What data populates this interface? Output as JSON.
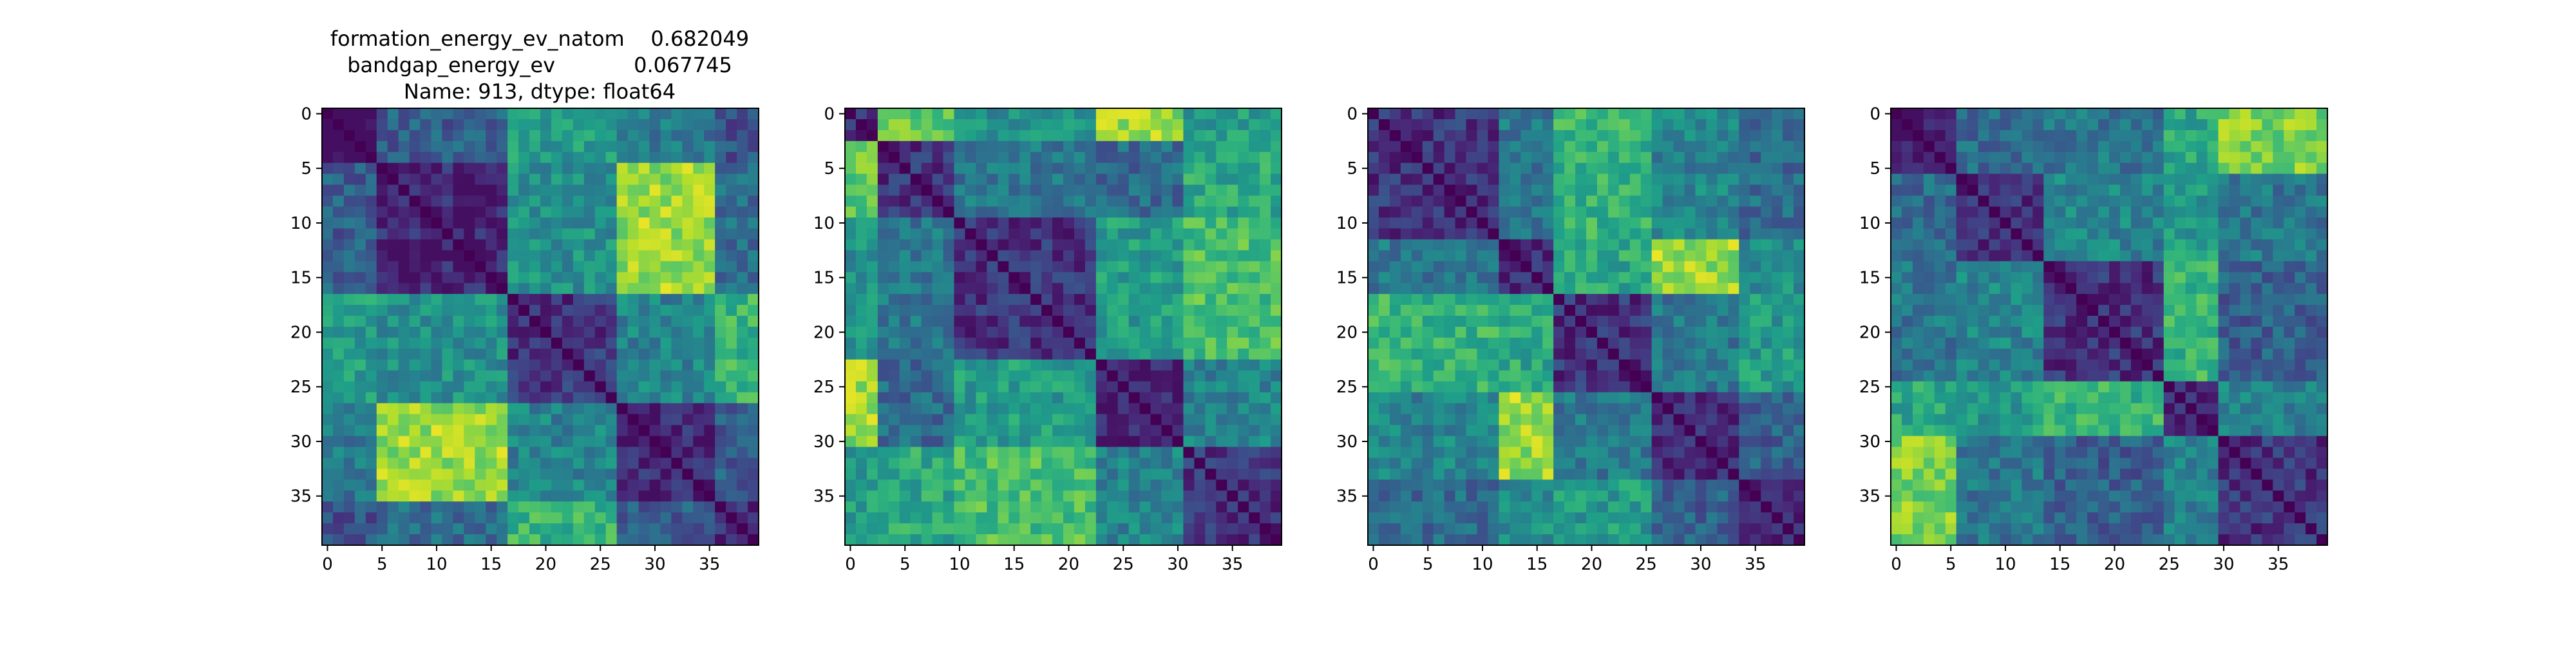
{
  "figure": {
    "background": "#ffffff",
    "title_lines": [
      "formation_energy_ev_natom    0.682049",
      "bandgap_energy_ev            0.067745",
      "Name: 913, dtype: float64"
    ]
  },
  "chart_data": [
    {
      "type": "heatmap",
      "title": "",
      "colormap": "viridis",
      "grid": false,
      "xlim": [
        -0.5,
        39.5
      ],
      "ylim": [
        39.5,
        -0.5
      ],
      "xticks": [
        0,
        5,
        10,
        15,
        20,
        25,
        30,
        35
      ],
      "yticks": [
        0,
        5,
        10,
        15,
        20,
        25,
        30,
        35
      ],
      "matrix_size": 40,
      "diagonal_value": 0.0,
      "groups": [
        [
          0,
          4
        ],
        [
          5,
          16
        ],
        [
          17,
          26
        ],
        [
          27,
          35
        ],
        [
          36,
          39
        ]
      ],
      "block_values": [
        [
          0.0,
          0.3,
          0.55,
          0.4,
          0.25
        ],
        [
          0.3,
          0.1,
          0.5,
          0.85,
          0.35
        ],
        [
          0.55,
          0.5,
          0.15,
          0.45,
          0.65
        ],
        [
          0.4,
          0.85,
          0.45,
          0.1,
          0.3
        ],
        [
          0.25,
          0.35,
          0.65,
          0.3,
          0.1
        ]
      ]
    },
    {
      "type": "heatmap",
      "title": "",
      "colormap": "viridis",
      "grid": false,
      "xlim": [
        -0.5,
        39.5
      ],
      "ylim": [
        39.5,
        -0.5
      ],
      "xticks": [
        0,
        5,
        10,
        15,
        20,
        25,
        30,
        35
      ],
      "yticks": [
        0,
        5,
        10,
        15,
        20,
        25,
        30,
        35
      ],
      "matrix_size": 40,
      "diagonal_value": 0.0,
      "groups": [
        [
          0,
          2
        ],
        [
          3,
          9
        ],
        [
          10,
          22
        ],
        [
          23,
          30
        ],
        [
          31,
          39
        ]
      ],
      "block_values": [
        [
          0.1,
          0.75,
          0.5,
          0.85,
          0.55
        ],
        [
          0.75,
          0.15,
          0.4,
          0.35,
          0.6
        ],
        [
          0.5,
          0.4,
          0.15,
          0.55,
          0.7
        ],
        [
          0.85,
          0.35,
          0.55,
          0.1,
          0.45
        ],
        [
          0.55,
          0.6,
          0.7,
          0.45,
          0.15
        ]
      ]
    },
    {
      "type": "heatmap",
      "title": "",
      "colormap": "viridis",
      "grid": false,
      "xlim": [
        -0.5,
        39.5
      ],
      "ylim": [
        39.5,
        -0.5
      ],
      "xticks": [
        0,
        5,
        10,
        15,
        20,
        25,
        30,
        35
      ],
      "yticks": [
        0,
        5,
        10,
        15,
        20,
        25,
        30,
        35
      ],
      "matrix_size": 40,
      "diagonal_value": 0.0,
      "groups": [
        [
          0,
          11
        ],
        [
          12,
          16
        ],
        [
          17,
          25
        ],
        [
          26,
          33
        ],
        [
          34,
          39
        ]
      ],
      "block_values": [
        [
          0.15,
          0.4,
          0.65,
          0.45,
          0.35
        ],
        [
          0.4,
          0.1,
          0.6,
          0.85,
          0.5
        ],
        [
          0.65,
          0.6,
          0.15,
          0.4,
          0.55
        ],
        [
          0.45,
          0.85,
          0.4,
          0.1,
          0.3
        ],
        [
          0.35,
          0.5,
          0.55,
          0.3,
          0.1
        ]
      ]
    },
    {
      "type": "heatmap",
      "title": "",
      "colormap": "viridis",
      "grid": false,
      "xlim": [
        -0.5,
        39.5
      ],
      "ylim": [
        39.5,
        -0.5
      ],
      "xticks": [
        0,
        5,
        10,
        15,
        20,
        25,
        30,
        35
      ],
      "yticks": [
        0,
        5,
        10,
        15,
        20,
        25,
        30,
        35
      ],
      "matrix_size": 40,
      "diagonal_value": 0.0,
      "groups": [
        [
          0,
          5
        ],
        [
          6,
          13
        ],
        [
          14,
          24
        ],
        [
          25,
          29
        ],
        [
          30,
          39
        ]
      ],
      "block_values": [
        [
          0.1,
          0.35,
          0.4,
          0.6,
          0.8
        ],
        [
          0.35,
          0.15,
          0.45,
          0.55,
          0.4
        ],
        [
          0.4,
          0.45,
          0.15,
          0.65,
          0.3
        ],
        [
          0.6,
          0.55,
          0.65,
          0.1,
          0.45
        ],
        [
          0.8,
          0.4,
          0.3,
          0.45,
          0.15
        ]
      ]
    }
  ]
}
